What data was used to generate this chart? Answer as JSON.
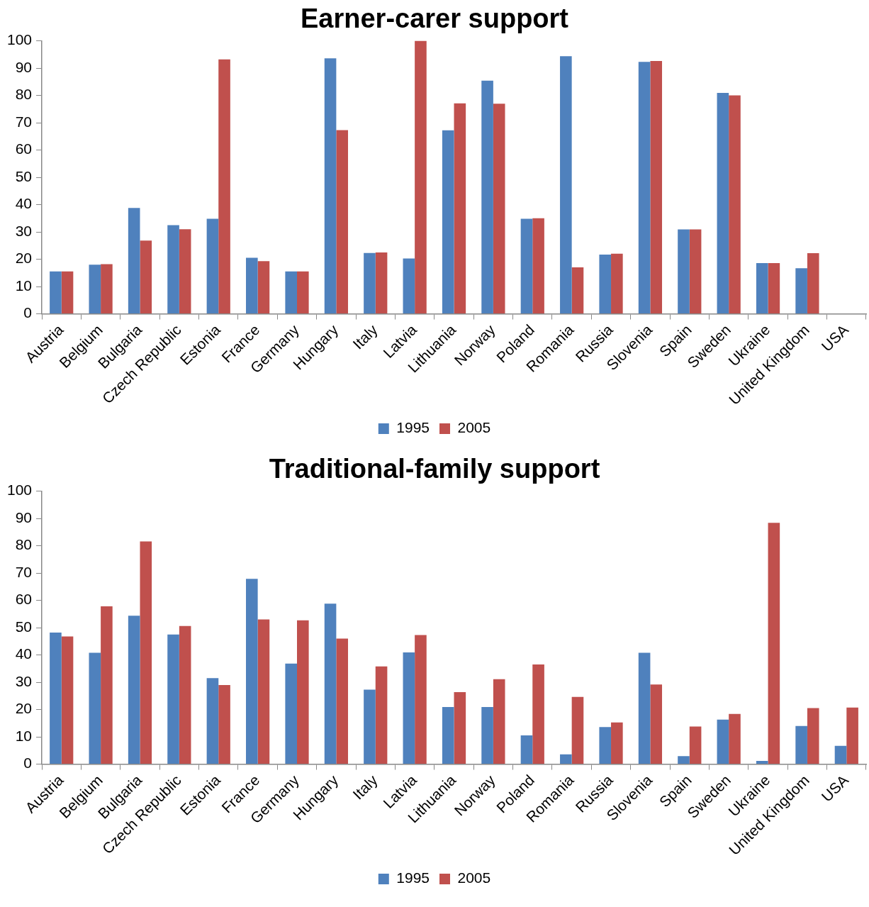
{
  "chart_data": [
    {
      "type": "bar",
      "title": "Earner-carer support",
      "categories": [
        "Austria",
        "Belgium",
        "Bulgaria",
        "Czech Republic",
        "Estonia",
        "France",
        "Germany",
        "Hungary",
        "Italy",
        "Latvia",
        "Lithuania",
        "Norway",
        "Poland",
        "Romania",
        "Russia",
        "Slovenia",
        "Spain",
        "Sweden",
        "Ukraine",
        "United Kingdom",
        "USA"
      ],
      "series": [
        {
          "name": "1995",
          "color": "#4f81bd",
          "values": [
            15.5,
            18,
            38.8,
            32.5,
            34.8,
            20.5,
            15.5,
            93.6,
            22.3,
            20.3,
            67.2,
            85.4,
            34.8,
            94.4,
            21.7,
            92.3,
            30.9,
            80.9,
            18.6,
            16.7,
            null
          ]
        },
        {
          "name": "2005",
          "color": "#c0504d",
          "values": [
            15.5,
            18.2,
            26.8,
            31,
            93.2,
            19.3,
            15.5,
            67.3,
            22.5,
            100,
            77.1,
            77,
            35,
            17,
            22,
            92.6,
            30.9,
            80,
            18.6,
            22.2,
            null
          ]
        }
      ],
      "ylim": [
        0,
        100
      ],
      "yticks": [
        0,
        10,
        20,
        30,
        40,
        50,
        60,
        70,
        80,
        90,
        100
      ],
      "grid": false,
      "legend": "bottom"
    },
    {
      "type": "bar",
      "title": "Traditional-family support",
      "categories": [
        "Austria",
        "Belgium",
        "Bulgaria",
        "Czech Republic",
        "Estonia",
        "France",
        "Germany",
        "Hungary",
        "Italy",
        "Latvia",
        "Lithuania",
        "Norway",
        "Poland",
        "Romania",
        "Russia",
        "Slovenia",
        "Spain",
        "Sweden",
        "Ukraine",
        "United Kingdom",
        "USA"
      ],
      "series": [
        {
          "name": "1995",
          "color": "#4f81bd",
          "values": [
            48.2,
            40.8,
            54.4,
            47.5,
            31.5,
            67.9,
            36.8,
            58.8,
            27.3,
            40.9,
            20.9,
            20.9,
            10.5,
            3.6,
            13.6,
            40.8,
            2.9,
            16.3,
            1.2,
            14,
            6.7
          ]
        },
        {
          "name": "2005",
          "color": "#c0504d",
          "values": [
            46.8,
            57.8,
            81.6,
            50.6,
            29,
            53,
            52.7,
            46,
            35.8,
            47.3,
            26.4,
            31.1,
            36.5,
            24.6,
            15.3,
            29.2,
            13.8,
            18.4,
            88.4,
            20.5,
            20.7
          ]
        }
      ],
      "ylim": [
        0,
        100
      ],
      "yticks": [
        0,
        10,
        20,
        30,
        40,
        50,
        60,
        70,
        80,
        90,
        100
      ],
      "grid": false,
      "legend": "bottom"
    }
  ]
}
